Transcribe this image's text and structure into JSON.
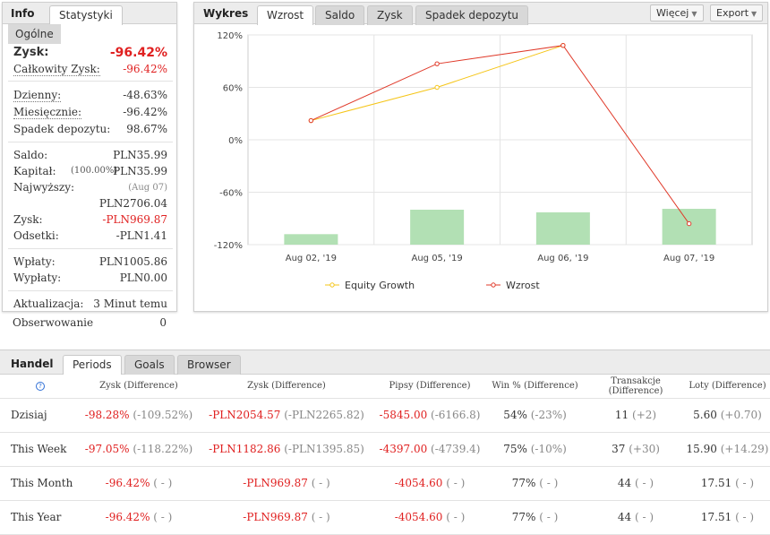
{
  "info": {
    "title": "Info",
    "tab_stats": "Statystyki",
    "subtab": "Ogólne",
    "zysk_label": "Zysk:",
    "zysk_value": "-96.42%",
    "calkowity_label": "Całkowity Zysk:",
    "calkowity_value": "-96.42%",
    "dzienny_label": "Dzienny:",
    "dzienny_value": "-48.63%",
    "miesiecznie_label": "Miesięcznie:",
    "miesiecznie_value": "-96.42%",
    "spadek_label": "Spadek depozytu:",
    "spadek_value": "98.67%",
    "saldo_label": "Saldo:",
    "saldo_value": "PLN35.99",
    "kapital_label": "Kapitał:",
    "kapital_pct": "(100.00%)",
    "kapital_value": "PLN35.99",
    "najwyzszy_label": "Najwyższy:",
    "najwyzszy_date": "(Aug 07)",
    "najwyzszy_value": "PLN2706.04",
    "zysk2_label": "Zysk:",
    "zysk2_value": "-PLN969.87",
    "odsetki_label": "Odsetki:",
    "odsetki_value": "-PLN1.41",
    "wplaty_label": "Wpłaty:",
    "wplaty_value": "PLN1005.86",
    "wyplaty_label": "Wypłaty:",
    "wyplaty_value": "PLN0.00",
    "aktualizacja_label": "Aktualizacja:",
    "aktualizacja_value": "3 Minut temu",
    "obserwowanie_label": "Obserwowanie",
    "obserwowanie_value": "0"
  },
  "chart_panel": {
    "title": "Wykres",
    "tabs": [
      "Wzrost",
      "Saldo",
      "Zysk",
      "Spadek depozytu"
    ],
    "more_label": "Więcej",
    "export_label": "Export"
  },
  "chart_data": {
    "type": "line",
    "categories": [
      "Aug 02, '19",
      "Aug 05, '19",
      "Aug 06, '19",
      "Aug 07, '19"
    ],
    "y_ticks": [
      "120%",
      "60%",
      "0%",
      "-60%",
      "-120%"
    ],
    "ylim": [
      -120,
      120
    ],
    "series": [
      {
        "name": "Equity Growth",
        "color": "#f5c518",
        "values": [
          22,
          60,
          108,
          null
        ]
      },
      {
        "name": "Wzrost",
        "color": "#e03a2a",
        "values": [
          22,
          87,
          108,
          -96
        ]
      }
    ],
    "bars": {
      "color": "#b2e0b4",
      "values": [
        -108,
        -80,
        -83,
        -79
      ]
    },
    "grid": true,
    "legend": "bottom"
  },
  "handel": {
    "title": "Handel",
    "tabs": [
      "Periods",
      "Goals",
      "Browser"
    ],
    "help_icon": "?",
    "headers": [
      "Zysk (Difference)",
      "Zysk (Difference)",
      "Pipsy (Difference)",
      "Win % (Difference)",
      "Transakcje (Difference)",
      "Loty (Difference)"
    ],
    "rows": [
      {
        "period": "Dzisiaj",
        "c1": "-98.28%",
        "c1d": "(-109.52%)",
        "c2": "-PLN2054.57",
        "c2d": "(-PLN2265.82)",
        "c3": "-5845.00",
        "c3d": "(-6166.8)",
        "c4": "54%",
        "c4d": "(-23%)",
        "c5": "11",
        "c5d": "(+2)",
        "c6": "5.60",
        "c6d": "(+0.70)"
      },
      {
        "period": "This Week",
        "c1": "-97.05%",
        "c1d": "(-118.22%)",
        "c2": "-PLN1182.86",
        "c2d": "(-PLN1395.85)",
        "c3": "-4397.00",
        "c3d": "(-4739.4)",
        "c4": "75%",
        "c4d": "(-10%)",
        "c5": "37",
        "c5d": "(+30)",
        "c6": "15.90",
        "c6d": "(+14.29)"
      },
      {
        "period": "This Month",
        "c1": "-96.42%",
        "c1d": "( - )",
        "c2": "-PLN969.87",
        "c2d": "( - )",
        "c3": "-4054.60",
        "c3d": "( - )",
        "c4": "77%",
        "c4d": "( - )",
        "c5": "44",
        "c5d": "( - )",
        "c6": "17.51",
        "c6d": "( - )"
      },
      {
        "period": "This Year",
        "c1": "-96.42%",
        "c1d": "( - )",
        "c2": "-PLN969.87",
        "c2d": "( - )",
        "c3": "-4054.60",
        "c3d": "( - )",
        "c4": "77%",
        "c4d": "( - )",
        "c5": "44",
        "c5d": "( - )",
        "c6": "17.51",
        "c6d": "( - )"
      }
    ]
  }
}
